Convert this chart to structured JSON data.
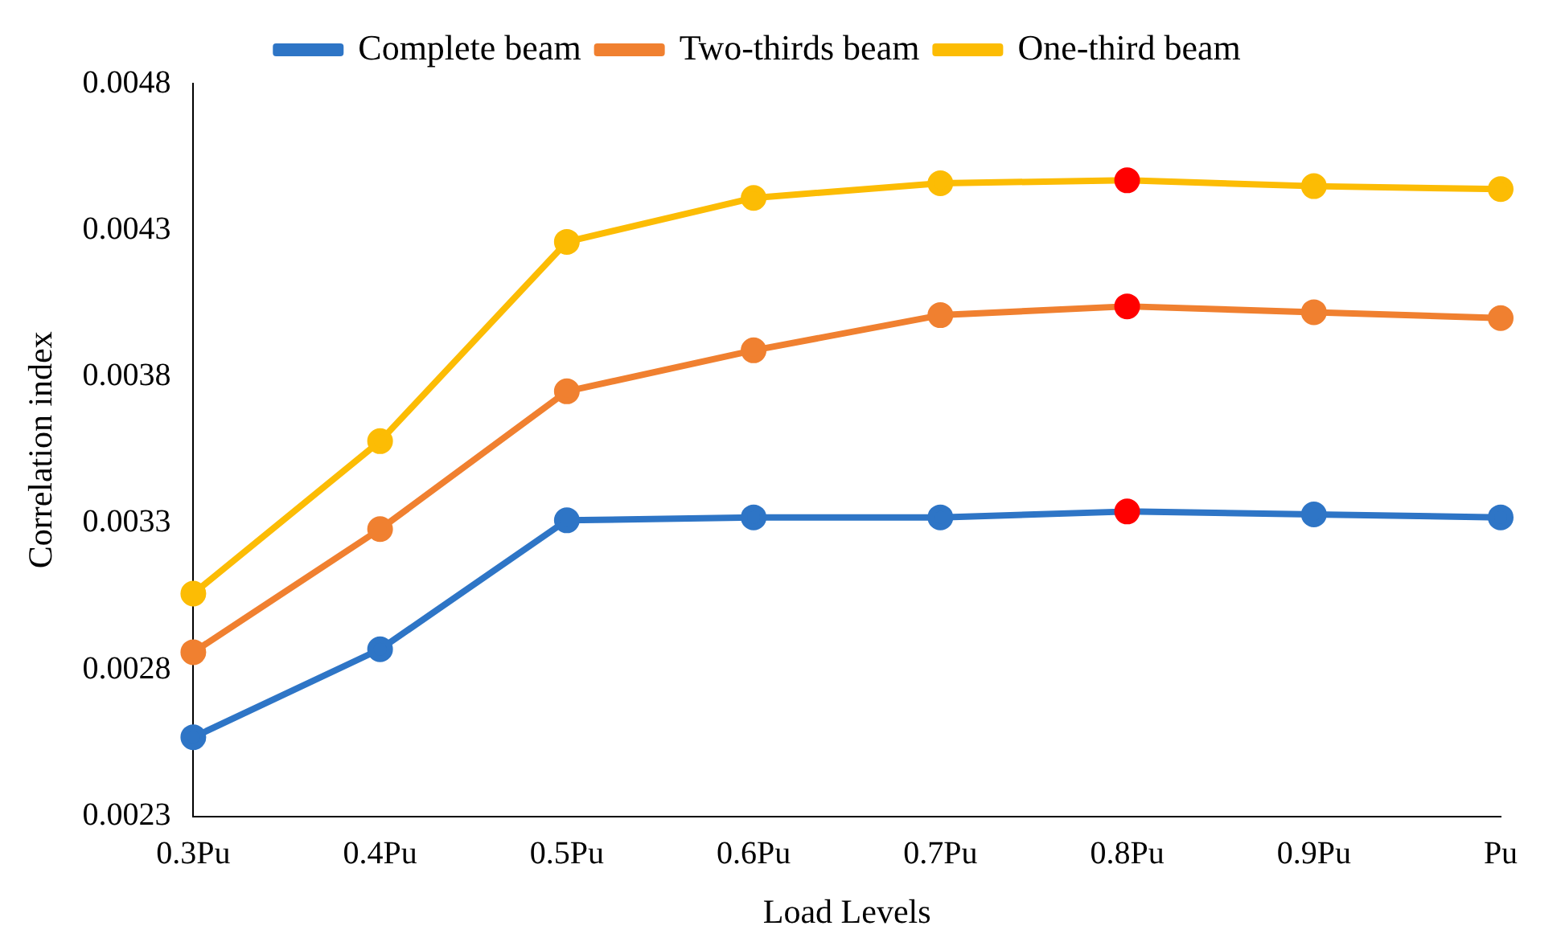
{
  "chart_data": {
    "type": "line",
    "xlabel": "Load Levels",
    "ylabel": "Correlation index",
    "categories": [
      "0.3Pu",
      "0.4Pu",
      "0.5Pu",
      "0.6Pu",
      "0.7Pu",
      "0.8Pu",
      "0.9Pu",
      "Pu"
    ],
    "series": [
      {
        "name": "Complete beam",
        "color": "#2e75c6",
        "colors": [
          "#2e75c6",
          "#2e75c6",
          "#2e75c6",
          "#2e75c6",
          "#2e75c6",
          "#ff0000",
          "#2e75c6",
          "#2e75c6"
        ],
        "values": [
          0.00257,
          0.00287,
          0.00331,
          0.00332,
          0.00332,
          0.00334,
          0.00333,
          0.00332
        ]
      },
      {
        "name": "Two-thirds beam",
        "color": "#f08030",
        "colors": [
          "#f08030",
          "#f08030",
          "#f08030",
          "#f08030",
          "#f08030",
          "#ff0000",
          "#f08030",
          "#f08030"
        ],
        "values": [
          0.00286,
          0.00328,
          0.00375,
          0.00389,
          0.00401,
          0.00404,
          0.00402,
          0.004
        ]
      },
      {
        "name": "One-third beam",
        "color": "#fcbc04",
        "colors": [
          "#fcbc04",
          "#fcbc04",
          "#fcbc04",
          "#fcbc04",
          "#fcbc04",
          "#ff0000",
          "#fcbc04",
          "#fcbc04"
        ],
        "values": [
          0.00306,
          0.00358,
          0.00426,
          0.00441,
          0.00446,
          0.00447,
          0.00445,
          0.00444
        ]
      }
    ],
    "ylim": [
      0.0023,
      0.0048
    ],
    "yticks": [
      0.0023,
      0.0028,
      0.0033,
      0.0038,
      0.0043,
      0.0048
    ],
    "grid": false,
    "legend": "top",
    "marker": "circle",
    "line_style": "solid"
  }
}
